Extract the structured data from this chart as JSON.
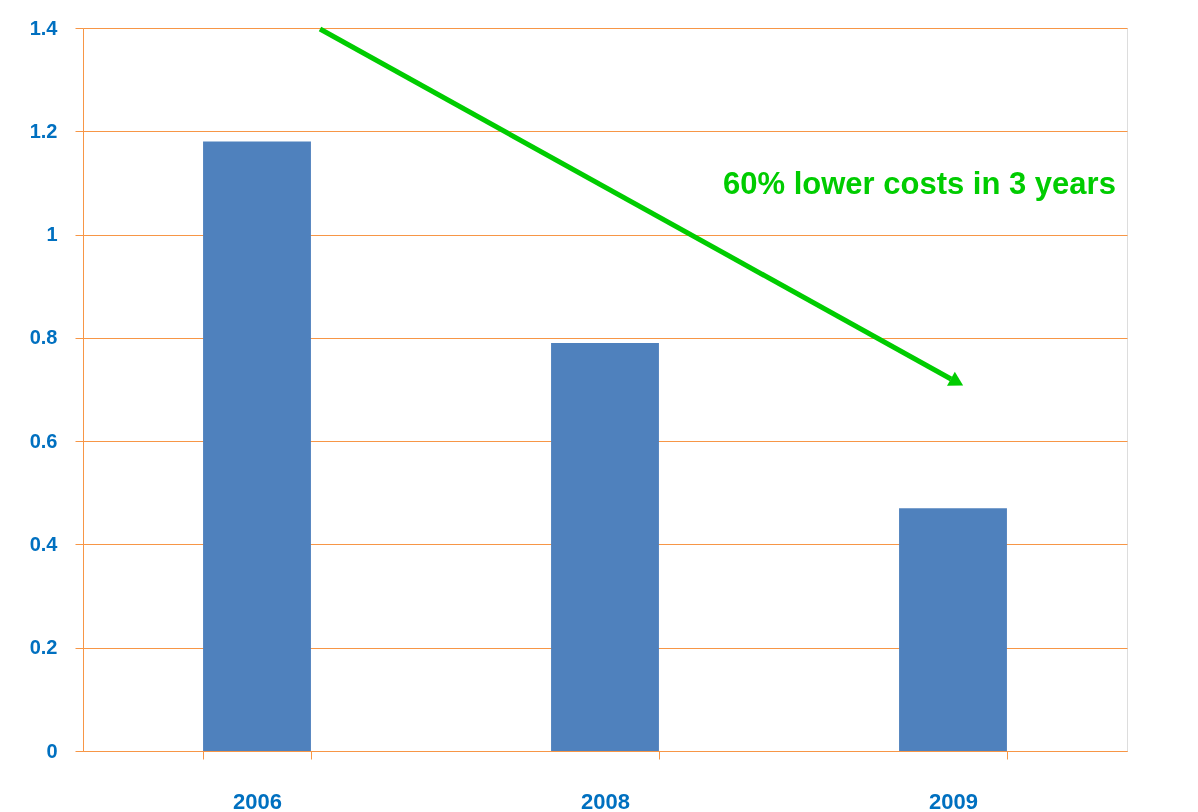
{
  "chart_data": {
    "type": "bar",
    "categories": [
      "2006",
      "2008",
      "2009"
    ],
    "values": [
      1.18,
      0.79,
      0.47
    ],
    "color": "#4f81bd",
    "ylim": [
      0,
      1.4
    ],
    "yticks": [
      0,
      0.2,
      0.4,
      0.6,
      0.8,
      1,
      1.2,
      1.4
    ],
    "grid": "y",
    "annotations": [
      "60% lower costs in 3 years"
    ]
  }
}
